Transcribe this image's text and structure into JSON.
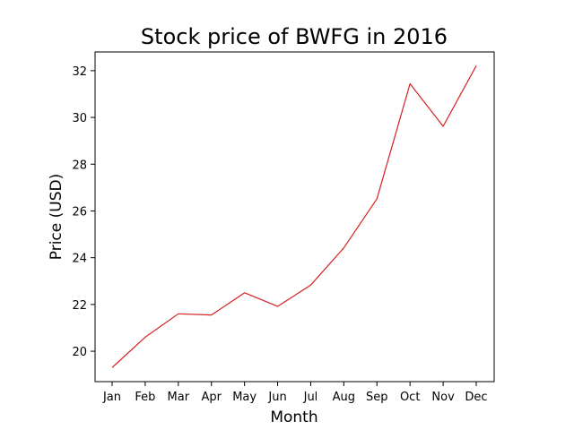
{
  "chart_data": {
    "type": "line",
    "title": "Stock price of BWFG in 2016",
    "xlabel": "Month",
    "ylabel": "Price (USD)",
    "categories": [
      "Jan",
      "Feb",
      "Mar",
      "Apr",
      "May",
      "Jun",
      "Jul",
      "Aug",
      "Sep",
      "Oct",
      "Nov",
      "Dec"
    ],
    "series": [
      {
        "color": "#d62020",
        "values": [
          19.3,
          20.6,
          21.6,
          21.55,
          22.5,
          21.92,
          22.83,
          24.42,
          26.52,
          31.44,
          29.62,
          32.21
        ]
      }
    ],
    "yticks": [
      20,
      22,
      24,
      26,
      28,
      30,
      32
    ],
    "ylim": [
      18.7,
      32.8
    ],
    "grid": false,
    "legend": "none"
  }
}
